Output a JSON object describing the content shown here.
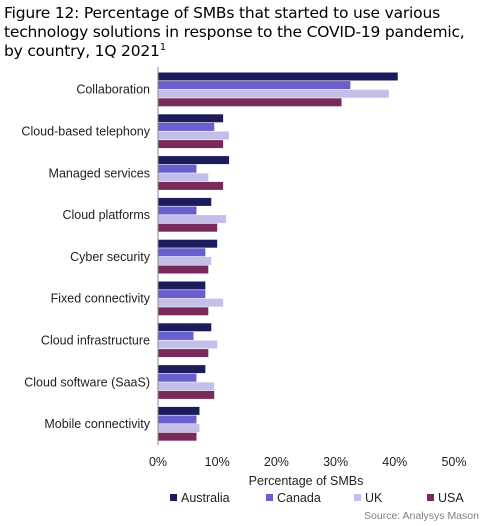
{
  "title": "Figure 12: Percentage of SMBs that started to use various technology solutions in response to the COVID-19 pandemic, by country, 1Q 2021",
  "title_footnote": "1",
  "source": "Source: Analysys Mason",
  "colors": {
    "Australia": "#1c1c5c",
    "Canada": "#6a5fcf",
    "UK": "#c3bfe8",
    "USA": "#7a2a5a"
  },
  "chart_data": {
    "type": "bar",
    "orientation": "horizontal",
    "xlabel": "Percentage of SMBs",
    "ylabel": "",
    "xlim": [
      0,
      50
    ],
    "x_ticks": [
      "0%",
      "10%",
      "20%",
      "30%",
      "40%",
      "50%"
    ],
    "grid": false,
    "legend_position": "bottom",
    "categories": [
      "Collaboration",
      "Cloud-based telephony",
      "Managed services",
      "Cloud platforms",
      "Cyber security",
      "Fixed connectivity",
      "Cloud infrastructure",
      "Cloud software (SaaS)",
      "Mobile connectivity"
    ],
    "series": [
      {
        "name": "Australia",
        "values": [
          40.5,
          11,
          12,
          9,
          10,
          8,
          9,
          8,
          7
        ]
      },
      {
        "name": "Canada",
        "values": [
          32.5,
          9.5,
          6.5,
          6.5,
          8,
          8,
          6,
          6.5,
          6.5
        ]
      },
      {
        "name": "UK",
        "values": [
          39,
          12,
          8.5,
          11.5,
          9,
          11,
          10,
          9.5,
          7
        ]
      },
      {
        "name": "USA",
        "values": [
          31,
          11,
          11,
          10,
          8.5,
          8.5,
          8.5,
          9.5,
          6.5
        ]
      }
    ]
  }
}
